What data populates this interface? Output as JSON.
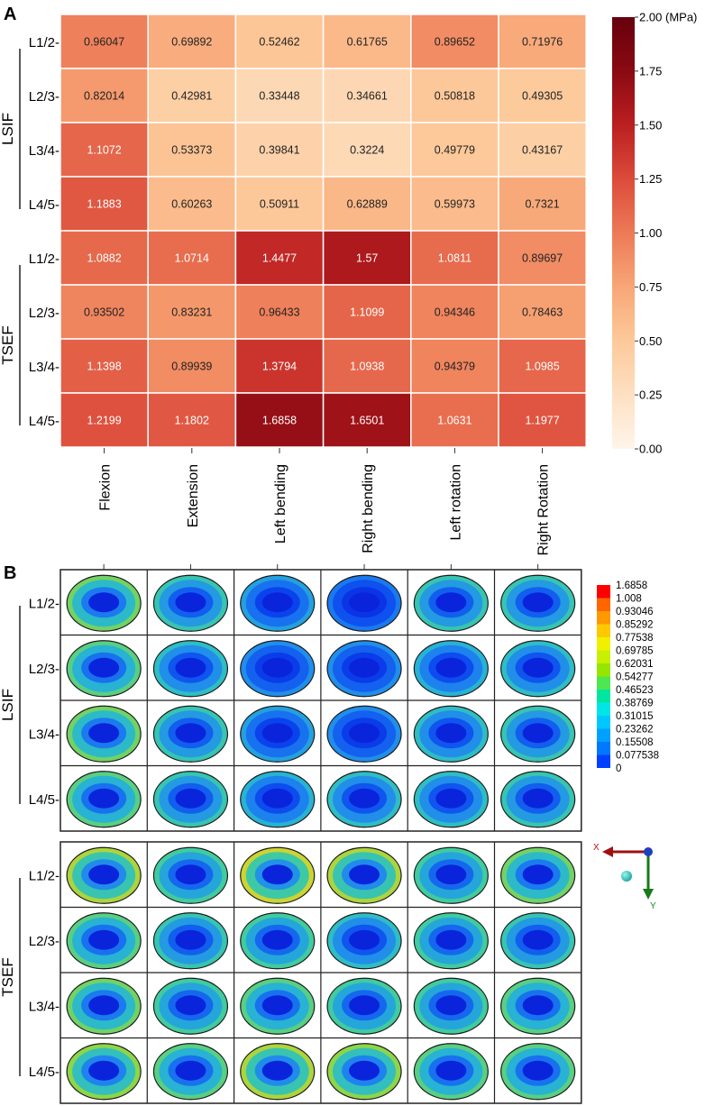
{
  "chart_data": [
    {
      "panel": "A",
      "type": "heatmap",
      "unit": "(MPa)",
      "columns": [
        "Flexion",
        "Extension",
        "Left bending",
        "Right bending",
        "Left rotation",
        "Right Rotation"
      ],
      "groups": [
        {
          "name": "LSIF",
          "rows": [
            {
              "label": "L1/2-",
              "values": [
                "0.96047",
                "0.69892",
                "0.52462",
                "0.61765",
                "0.89652",
                "0.71976"
              ]
            },
            {
              "label": "L2/3-",
              "values": [
                "0.82014",
                "0.42981",
                "0.33448",
                "0.34661",
                "0.50818",
                "0.49305"
              ]
            },
            {
              "label": "L3/4-",
              "values": [
                "1.1072",
                "0.53373",
                "0.39841",
                "0.3224",
                "0.49779",
                "0.43167"
              ]
            },
            {
              "label": "L4/5-",
              "values": [
                "1.1883",
                "0.60263",
                "0.50911",
                "0.62889",
                "0.59973",
                "0.7321"
              ]
            }
          ]
        },
        {
          "name": "TSEF",
          "rows": [
            {
              "label": "L1/2-",
              "values": [
                "1.0882",
                "1.0714",
                "1.4477",
                "1.57",
                "1.0811",
                "0.89697"
              ]
            },
            {
              "label": "L2/3-",
              "values": [
                "0.93502",
                "0.83231",
                "0.96433",
                "1.1099",
                "0.94346",
                "0.78463"
              ]
            },
            {
              "label": "L3/4-",
              "values": [
                "1.1398",
                "0.89939",
                "1.3794",
                "1.0938",
                "0.94379",
                "1.0985"
              ]
            },
            {
              "label": "L4/5-",
              "values": [
                "1.2199",
                "1.1802",
                "1.6858",
                "1.6501",
                "1.0631",
                "1.1977"
              ]
            }
          ]
        }
      ],
      "colorbar": {
        "range": [
          0,
          2
        ],
        "ticks": [
          "2.00",
          "1.75",
          "1.50",
          "1.25",
          "1.00",
          "0.75",
          "0.50",
          "0.25",
          "0.00"
        ],
        "colors": [
          "#fff5eb",
          "#fde0c2",
          "#fdc99a",
          "#f8a677",
          "#ec7a56",
          "#dc4b3b",
          "#bb1f20",
          "#8a0a12",
          "#67000d"
        ]
      }
    },
    {
      "panel": "B",
      "type": "contour-grid",
      "columns": [
        "Flexion",
        "Extension",
        "Left bending",
        "Right bending",
        "Left rotation",
        "Right Rotation"
      ],
      "groups": [
        {
          "name": "LSIF",
          "rows": [
            "L1/2-",
            "L2/3-",
            "L3/4-",
            "L4/5-"
          ]
        },
        {
          "name": "TSEF",
          "rows": [
            "L1/2-",
            "L2/3-",
            "L3/4-",
            "L4/5-"
          ]
        }
      ],
      "intensity": [
        [
          [
            0.65,
            0.5,
            0.35,
            0.25,
            0.5,
            0.5
          ],
          [
            0.6,
            0.45,
            0.3,
            0.3,
            0.4,
            0.45
          ],
          [
            0.65,
            0.5,
            0.35,
            0.3,
            0.45,
            0.5
          ],
          [
            0.6,
            0.5,
            0.4,
            0.45,
            0.45,
            0.5
          ]
        ],
        [
          [
            0.75,
            0.55,
            0.8,
            0.75,
            0.55,
            0.65
          ],
          [
            0.6,
            0.5,
            0.55,
            0.45,
            0.55,
            0.5
          ],
          [
            0.65,
            0.55,
            0.6,
            0.55,
            0.55,
            0.6
          ],
          [
            0.7,
            0.6,
            0.75,
            0.7,
            0.6,
            0.6
          ]
        ]
      ],
      "legend": [
        "1.6858",
        "1.008",
        "0.93046",
        "0.85292",
        "0.77538",
        "0.69785",
        "0.62031",
        "0.54277",
        "0.46523",
        "0.38769",
        "0.31015",
        "0.23262",
        "0.15508",
        "0.077538",
        "0"
      ],
      "legend_colors": [
        "#ff0000",
        "#ff6600",
        "#ff9900",
        "#ffc800",
        "#f0f000",
        "#c8f000",
        "#96e600",
        "#50e650",
        "#00e6a0",
        "#00e6e6",
        "#00c8ff",
        "#00a0ff",
        "#0078ff",
        "#0040ff",
        "#0000ff"
      ],
      "axes": {
        "x": "X",
        "y": "Y"
      }
    }
  ],
  "panel_labels": {
    "a": "A",
    "b": "B"
  }
}
